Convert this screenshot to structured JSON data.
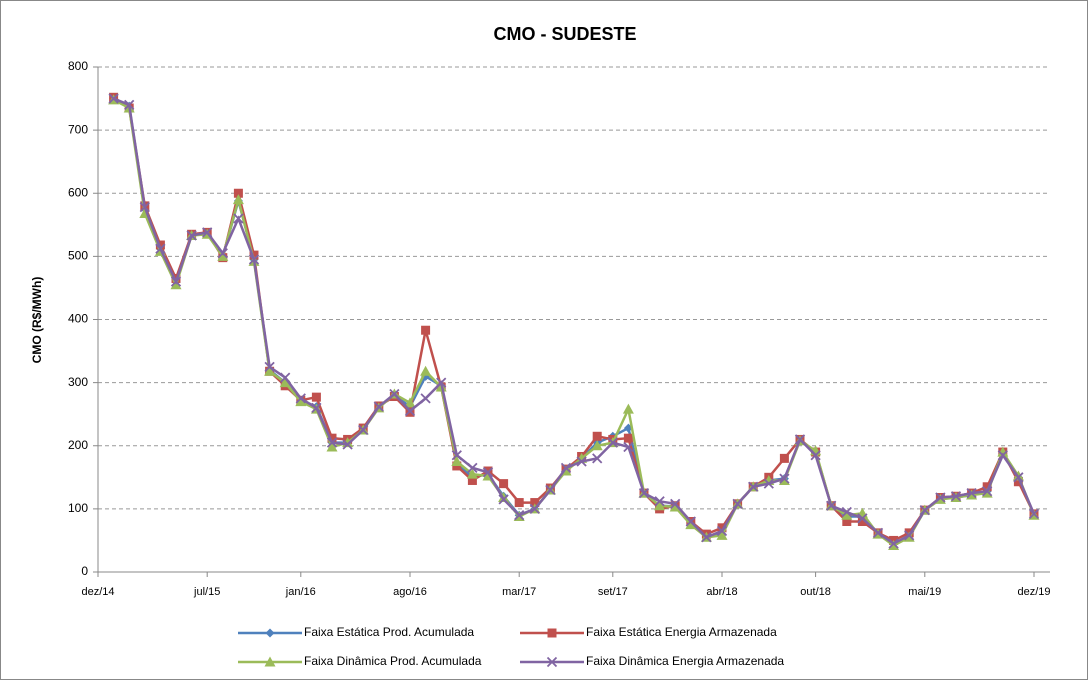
{
  "chart_data": {
    "type": "line",
    "title": "CMO - SUDESTE",
    "y_label": "CMO (R$/MWh)",
    "categories": [
      "dez/14",
      null,
      null,
      null,
      null,
      null,
      null,
      "jul/15",
      null,
      null,
      null,
      null,
      null,
      "jan/16",
      null,
      null,
      null,
      null,
      null,
      null,
      "ago/16",
      null,
      null,
      null,
      null,
      null,
      null,
      "mar/17",
      null,
      null,
      null,
      null,
      null,
      "set/17",
      null,
      null,
      null,
      null,
      null,
      null,
      "abr/18",
      null,
      null,
      null,
      null,
      null,
      "out/18",
      null,
      null,
      null,
      null,
      null,
      null,
      "mai/19",
      null,
      null,
      null,
      null,
      null,
      null,
      "dez/19"
    ],
    "series": [
      {
        "name": "Faixa Estática Prod. Acumulada",
        "color": "#4f81bd",
        "marker": "diamond",
        "values": [
          null,
          750,
          738,
          575,
          512,
          460,
          533,
          537,
          500,
          588,
          495,
          320,
          300,
          272,
          262,
          205,
          205,
          225,
          262,
          280,
          262,
          310,
          295,
          172,
          150,
          155,
          120,
          90,
          100,
          130,
          162,
          180,
          205,
          215,
          228,
          125,
          105,
          104,
          78,
          57,
          60,
          108,
          135,
          145,
          148,
          208,
          190,
          105,
          88,
          88,
          62,
          45,
          57,
          98,
          116,
          118,
          122,
          128,
          188,
          150,
          91
        ]
      },
      {
        "name": "Faixa Estática Energia Armazenada",
        "color": "#c0504d",
        "marker": "square",
        "values": [
          null,
          752,
          735,
          580,
          518,
          465,
          535,
          538,
          498,
          600,
          502,
          318,
          295,
          272,
          277,
          212,
          210,
          228,
          263,
          278,
          253,
          383,
          293,
          168,
          145,
          160,
          140,
          110,
          110,
          133,
          163,
          183,
          215,
          210,
          212,
          125,
          100,
          105,
          80,
          60,
          70,
          108,
          135,
          150,
          180,
          210,
          190,
          105,
          80,
          80,
          62,
          50,
          62,
          98,
          118,
          120,
          125,
          135,
          190,
          143,
          92
        ]
      },
      {
        "name": "Faixa Dinâmica Prod. Acumulada",
        "color": "#9bbb59",
        "marker": "triangle",
        "values": [
          null,
          748,
          735,
          568,
          508,
          455,
          533,
          535,
          500,
          590,
          492,
          318,
          300,
          270,
          258,
          198,
          205,
          225,
          260,
          282,
          268,
          318,
          293,
          175,
          155,
          152,
          118,
          88,
          100,
          130,
          160,
          180,
          200,
          205,
          258,
          125,
          105,
          103,
          75,
          55,
          58,
          108,
          135,
          145,
          145,
          208,
          192,
          105,
          90,
          93,
          60,
          42,
          55,
          98,
          115,
          118,
          122,
          125,
          190,
          152,
          90
        ]
      },
      {
        "name": "Faixa Dinâmica Energia Armazenada",
        "color": "#8064a2",
        "marker": "x",
        "values": [
          null,
          750,
          740,
          578,
          512,
          460,
          533,
          538,
          505,
          560,
          495,
          325,
          308,
          275,
          260,
          205,
          202,
          225,
          262,
          282,
          255,
          275,
          300,
          185,
          165,
          158,
          115,
          90,
          100,
          130,
          165,
          175,
          180,
          205,
          198,
          125,
          112,
          108,
          80,
          55,
          65,
          108,
          135,
          140,
          148,
          210,
          185,
          105,
          95,
          85,
          62,
          45,
          58,
          98,
          118,
          120,
          125,
          128,
          185,
          150,
          92
        ]
      }
    ],
    "ylim": [
      0,
      800
    ],
    "yticks": [
      0,
      100,
      200,
      300,
      400,
      500,
      600,
      700,
      800
    ],
    "grid": true,
    "legend": "bottom"
  }
}
